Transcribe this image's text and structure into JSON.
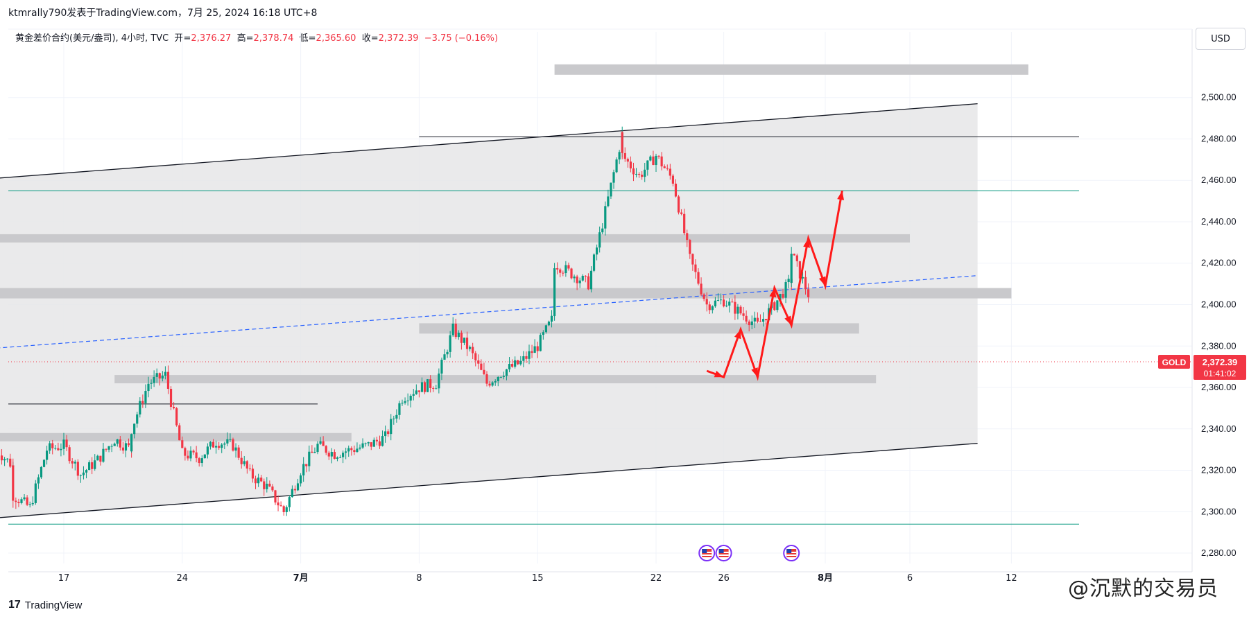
{
  "header": {
    "publish_line": "ktmrally790发表于TradingView.com，7月 25, 2024 16:18 UTC+8"
  },
  "legend": {
    "symbol": "黄金差价合约(美元/盎司), 4小时, TVC",
    "open_label": "开=",
    "open_value": "2,376.27",
    "high_label": "高=",
    "high_value": "2,378.74",
    "low_label": "低=",
    "low_value": "2,365.60",
    "close_label": "收=",
    "close_value": "2,372.39",
    "change": "−3.75 (−0.16%)"
  },
  "currency_button": "USD",
  "price_tag": {
    "symbol": "GOLD",
    "price": "2,372.39",
    "countdown": "01:41:02"
  },
  "footer": {
    "logo_text": "TradingView"
  },
  "watermark": "沉默的交易员",
  "colors": {
    "up": "#089981",
    "down": "#f23645",
    "arrow": "#ff1a1a",
    "zone": "#c9c9cc",
    "channel_fill": "#e6e6e8",
    "dashed": "#2962ff"
  },
  "chart_data": {
    "type": "candlestick",
    "y_axis": {
      "min": 2275,
      "max": 2525,
      "ticks": [
        2280,
        2300,
        2320,
        2340,
        2360,
        2380,
        2400,
        2420,
        2440,
        2460,
        2480,
        2500
      ],
      "tick_labels": [
        "2,280.00",
        "2,300.00",
        "2,320.00",
        "2,340.00",
        "2,360.00",
        "2,380.00",
        "2,400.00",
        "2,420.00",
        "2,440.00",
        "2,460.00",
        "2,480.00",
        "2,500.00"
      ],
      "position": "right"
    },
    "x_axis": {
      "ticks": [
        {
          "label": "17",
          "date": "2024-06-17"
        },
        {
          "label": "24",
          "date": "2024-06-24"
        },
        {
          "label": "7月",
          "date": "2024-07-01",
          "bold": true
        },
        {
          "label": "8",
          "date": "2024-07-08"
        },
        {
          "label": "15",
          "date": "2024-07-15"
        },
        {
          "label": "22",
          "date": "2024-07-22"
        },
        {
          "label": "26",
          "date": "2024-07-26"
        },
        {
          "label": "8月",
          "date": "2024-08-01",
          "bold": true
        },
        {
          "label": "6",
          "date": "2024-08-06"
        },
        {
          "label": "12",
          "date": "2024-08-12"
        }
      ]
    },
    "last_price": 2372.39,
    "waypoints": [
      [
        "2024-06-13",
        2330
      ],
      [
        "2024-06-14",
        2322
      ],
      [
        "2024-06-14",
        2308
      ],
      [
        "2024-06-15",
        2302
      ],
      [
        "2024-06-16",
        2330
      ],
      [
        "2024-06-17",
        2332
      ],
      [
        "2024-06-18",
        2318
      ],
      [
        "2024-06-19",
        2325
      ],
      [
        "2024-06-20",
        2335
      ],
      [
        "2024-06-21",
        2330
      ],
      [
        "2024-06-21",
        2340
      ],
      [
        "2024-06-22",
        2362
      ],
      [
        "2024-06-23",
        2366
      ],
      [
        "2024-06-24",
        2328
      ],
      [
        "2024-06-25",
        2326
      ],
      [
        "2024-06-26",
        2334
      ],
      [
        "2024-06-27",
        2332
      ],
      [
        "2024-06-28",
        2318
      ],
      [
        "2024-06-29",
        2312
      ],
      [
        "2024-06-30",
        2300
      ],
      [
        "2024-07-01",
        2320
      ],
      [
        "2024-07-02",
        2332
      ],
      [
        "2024-07-03",
        2328
      ],
      [
        "2024-07-04",
        2330
      ],
      [
        "2024-07-05",
        2332
      ],
      [
        "2024-07-06",
        2336
      ],
      [
        "2024-07-07",
        2355
      ],
      [
        "2024-07-08",
        2360
      ],
      [
        "2024-07-09",
        2362
      ],
      [
        "2024-07-10",
        2388
      ],
      [
        "2024-07-11",
        2378
      ],
      [
        "2024-07-12",
        2362
      ],
      [
        "2024-07-13",
        2368
      ],
      [
        "2024-07-14",
        2372
      ],
      [
        "2024-07-15",
        2380
      ],
      [
        "2024-07-16",
        2395
      ],
      [
        "2024-07-16",
        2420
      ],
      [
        "2024-07-17",
        2415
      ],
      [
        "2024-07-18",
        2410
      ],
      [
        "2024-07-19",
        2445
      ],
      [
        "2024-07-20",
        2482
      ],
      [
        "2024-07-20",
        2472
      ],
      [
        "2024-07-21",
        2462
      ],
      [
        "2024-07-22",
        2472
      ],
      [
        "2024-07-23",
        2460
      ],
      [
        "2024-07-24",
        2422
      ],
      [
        "2024-07-25",
        2400
      ],
      [
        "2024-07-26",
        2402
      ],
      [
        "2024-07-27",
        2396
      ],
      [
        "2024-07-28",
        2390
      ],
      [
        "2024-07-29",
        2400
      ],
      [
        "2024-07-30",
        2412
      ],
      [
        "2024-07-30",
        2425
      ],
      [
        "2024-07-31",
        2405
      ],
      [
        "2024-07-31",
        2372
      ]
    ],
    "series": [
      {
        "name": "",
        "color": "#ff1a1a",
        "points": [
          [
            "2024-07-25",
            2368
          ],
          [
            "2024-07-26",
            2365
          ],
          [
            "2024-07-27",
            2388
          ],
          [
            "2024-07-28",
            2365
          ],
          [
            "2024-07-29",
            2408
          ],
          [
            "2024-07-30",
            2390
          ],
          [
            "2024-07-31",
            2432
          ],
          [
            "2024-08-01",
            2409
          ],
          [
            "2024-08-02",
            2455
          ]
        ]
      }
    ],
    "zones": [
      {
        "from": "2024-07-16",
        "to": "2024-08-13",
        "low": 2511,
        "high": 2516
      },
      {
        "from": "2024-06-13",
        "to": "2024-08-06",
        "low": 2430,
        "high": 2434
      },
      {
        "from": "2024-06-13",
        "to": "2024-08-12",
        "low": 2403,
        "high": 2408
      },
      {
        "from": "2024-07-08",
        "to": "2024-08-03",
        "low": 2386,
        "high": 2391
      },
      {
        "from": "2024-06-20",
        "to": "2024-08-04",
        "low": 2362,
        "high": 2366
      },
      {
        "from": "2024-06-13",
        "to": "2024-07-04",
        "low": 2334,
        "high": 2338
      }
    ],
    "channel": {
      "from": "2024-06-13",
      "to": "2024-08-10",
      "upper": [
        2461,
        2497
      ],
      "lower": [
        2297,
        2333
      ]
    },
    "horizontal_lines": [
      {
        "price": 2481,
        "from": "2024-07-08",
        "to": "2024-08-16",
        "color": "#131722"
      },
      {
        "price": 2455,
        "from": "2024-06-13",
        "to": "2024-08-16",
        "color": "#089981"
      },
      {
        "price": 2294,
        "from": "2024-06-13",
        "to": "2024-08-16",
        "color": "#089981"
      },
      {
        "price": 2352,
        "from": "2024-06-13",
        "to": "2024-07-02",
        "color": "#131722"
      }
    ],
    "dashed_trend": {
      "from": [
        "2024-06-13",
        2379
      ],
      "to": [
        "2024-08-10",
        2414
      ]
    },
    "events": [
      "2024-07-25",
      "2024-07-26",
      "2024-07-30"
    ]
  }
}
